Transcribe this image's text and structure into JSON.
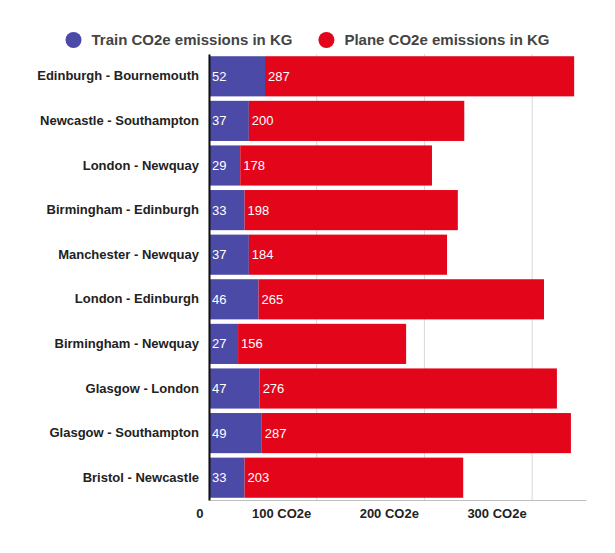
{
  "chart_data": {
    "type": "bar",
    "orientation": "horizontal",
    "stacked": true,
    "data_labels": true,
    "grid": true,
    "legend": "top",
    "categories": [
      "Edinburgh - Bournemouth",
      "Newcastle - Southampton",
      "London - Newquay",
      "Birmingham - Edinburgh",
      "Manchester - Newquay",
      "London - Edinburgh",
      "Birmingham - Newquay",
      "Glasgow - London",
      "Glasgow - Southampton",
      "Bristol - Newcastle"
    ],
    "series": [
      {
        "name": "Train CO2e emissions in KG",
        "color": "#4b4aa6",
        "values": [
          52,
          37,
          29,
          33,
          37,
          46,
          27,
          47,
          49,
          33
        ]
      },
      {
        "name": "Plane CO2e emissions in KG",
        "color": "#e3061b",
        "values": [
          287,
          200,
          178,
          198,
          184,
          265,
          156,
          276,
          287,
          203
        ]
      }
    ],
    "xlim": [
      0,
      350
    ],
    "xticks": [
      0,
      {
        "value": 100,
        "label": "100 CO2e"
      },
      {
        "value": 200,
        "label": "200 CO2e"
      },
      {
        "value": 300,
        "label": "300 CO2e"
      }
    ]
  }
}
